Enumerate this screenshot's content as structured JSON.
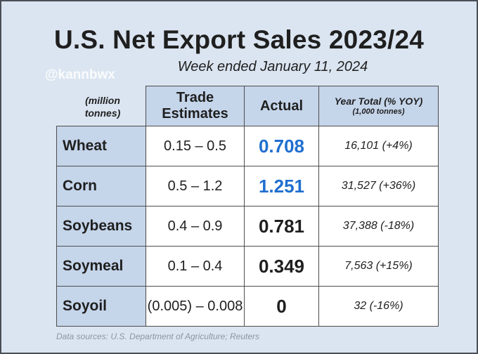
{
  "title": "U.S. Net Export Sales 2023/24",
  "subtitle": "Week ended January 11, 2024",
  "watermark": "@kannbwx",
  "unit_label": "(million tonnes)",
  "columns": {
    "trade_estimates": "Trade Estimates",
    "actual": "Actual",
    "year_total": "Year Total (% YOY)",
    "year_total_unit": "(1,000 tonnes)"
  },
  "rows": [
    {
      "commodity": "Wheat",
      "estimates": "0.15 – 0.5",
      "actual": "0.708",
      "year_total": "16,101 (+4%)",
      "actual_color": "#1f6fcf"
    },
    {
      "commodity": "Corn",
      "estimates": "0.5 – 1.2",
      "actual": "1.251",
      "year_total": "31,527 (+36%)",
      "actual_color": "#1f6fcf"
    },
    {
      "commodity": "Soybeans",
      "estimates": "0.4 – 0.9",
      "actual": "0.781",
      "year_total": "37,388 (-18%)",
      "actual_color": "#1f1f1f"
    },
    {
      "commodity": "Soymeal",
      "estimates": "0.1 – 0.4",
      "actual": "0.349",
      "year_total": "7,563 (+15%)",
      "actual_color": "#1f1f1f"
    },
    {
      "commodity": "Soyoil",
      "estimates": "(0.005) – 0.008",
      "actual": "0",
      "year_total": "32 (-16%)",
      "actual_color": "#1f1f1f"
    }
  ],
  "source": "Data sources: U.S. Department of Agriculture; Reuters"
}
